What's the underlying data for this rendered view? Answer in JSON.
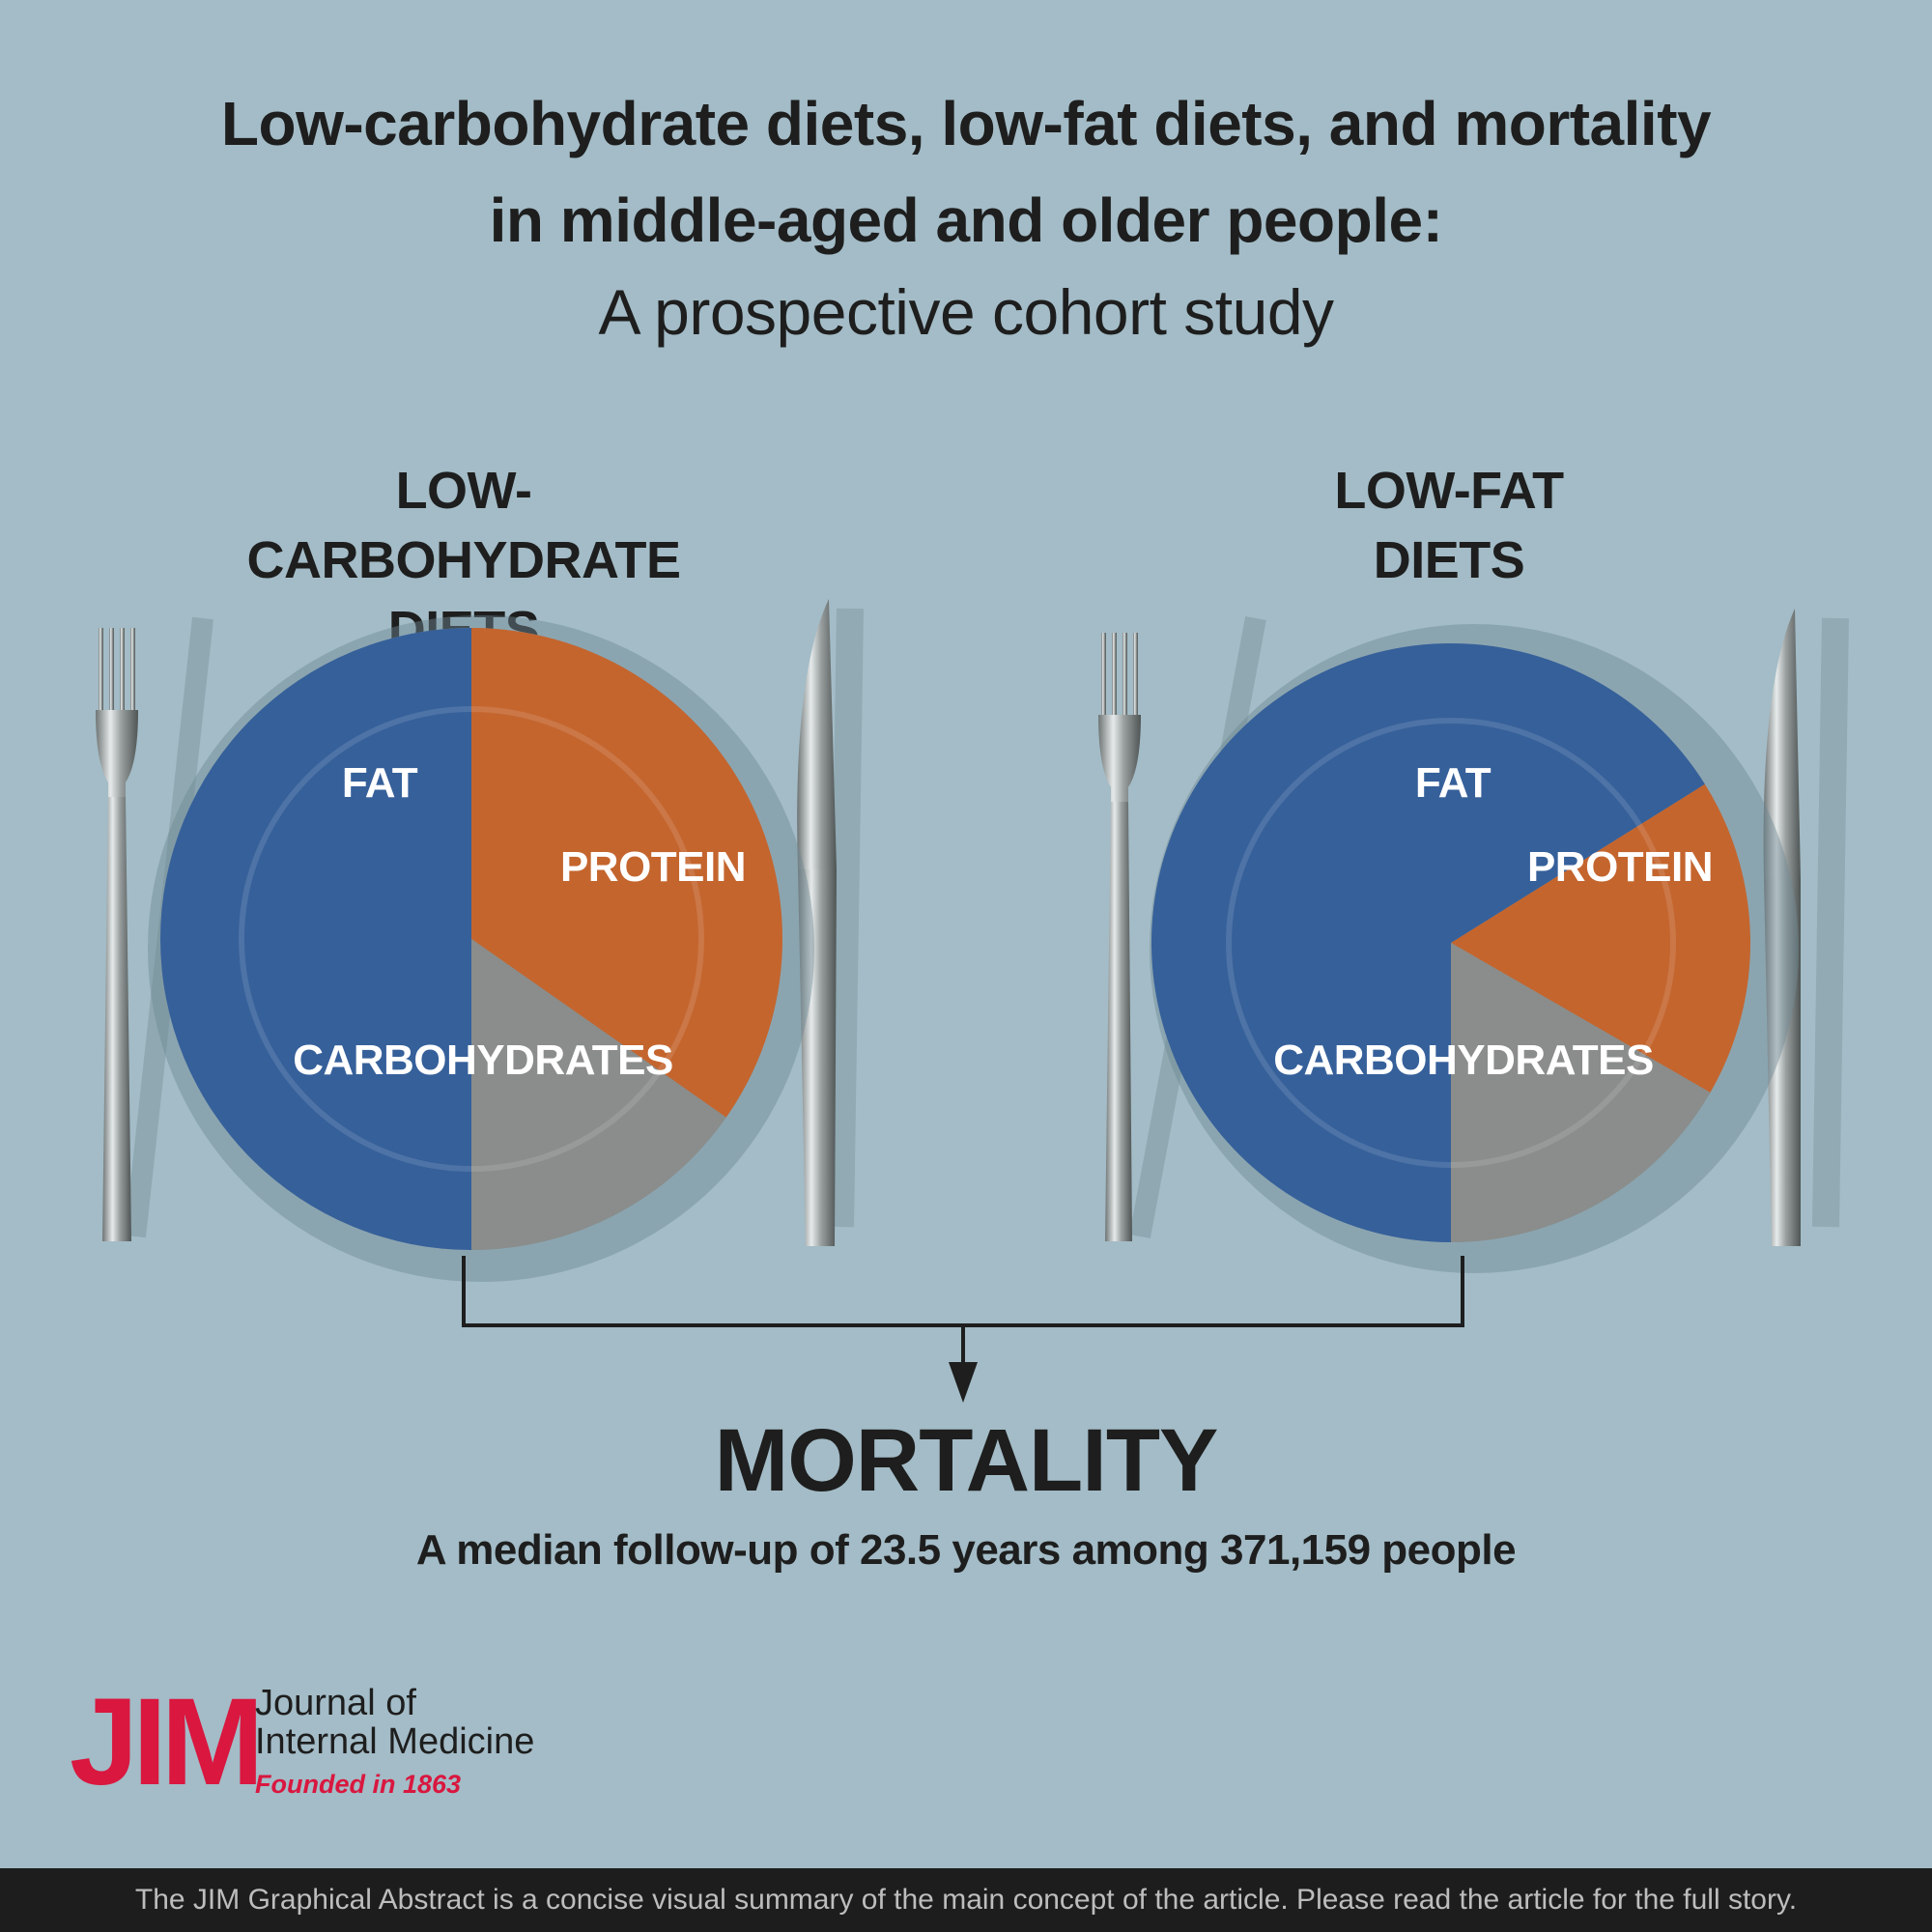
{
  "header": {
    "title_line1": "Low-carbohydrate diets, low-fat diets, and mortality",
    "title_line2": "in middle-aged and older people:",
    "subtitle": "A prospective cohort study"
  },
  "diets": [
    {
      "heading_line1": "LOW-CARBOHYDRATE",
      "heading_line2": "DIETS",
      "segments": [
        {
          "label": "FAT",
          "start_deg": 270,
          "end_deg": 35
        },
        {
          "label": "PROTEIN",
          "start_deg": 35,
          "end_deg": 90
        },
        {
          "label": "CARBOHYDRATES",
          "start_deg": 90,
          "end_deg": 270
        }
      ]
    },
    {
      "heading_line1": "LOW-FAT",
      "heading_line2": "DIETS",
      "segments": [
        {
          "label": "FAT",
          "start_deg": -32,
          "end_deg": 30
        },
        {
          "label": "PROTEIN",
          "start_deg": 30,
          "end_deg": 90
        },
        {
          "label": "CARBOHYDRATES",
          "start_deg": 90,
          "end_deg": 328
        }
      ]
    }
  ],
  "colors": {
    "background": "#a3bcc7",
    "fat": "#c4652e",
    "protein": "#8a8d8b",
    "carbohydrates": "#36609a",
    "logo": "#d9173f",
    "footer": "#1d1d1d"
  },
  "outcome": {
    "label": "MORTALITY",
    "detail": "A median follow-up of 23.5 years among 371,159 people"
  },
  "logo": {
    "mark": "JIM",
    "line1": "Journal of",
    "line2": "Internal Medicine",
    "line3": "Founded in 1863"
  },
  "footer": {
    "text": "The JIM Graphical Abstract is a concise visual summary of the main concept of the article. Please read the article for the full story."
  }
}
